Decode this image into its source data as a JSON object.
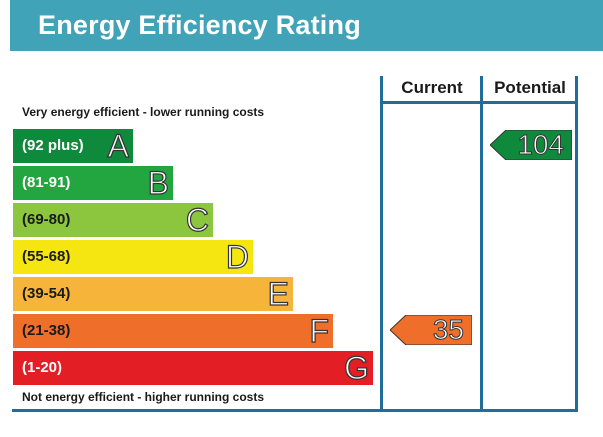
{
  "header": {
    "title": "Energy Efficiency Rating"
  },
  "columns": {
    "current": "Current",
    "potential": "Potential"
  },
  "captions": {
    "top": "Very energy efficient - lower running costs",
    "bottom": "Not energy efficient - higher running costs"
  },
  "chart_data": {
    "type": "bar",
    "title": "Energy Efficiency Rating",
    "categories": [
      "A",
      "B",
      "C",
      "D",
      "E",
      "F",
      "G"
    ],
    "bands": [
      {
        "letter": "A",
        "range": "(92 plus)",
        "color": "#0f8a3c",
        "text_color": "#ffffff"
      },
      {
        "letter": "B",
        "range": "(81-91)",
        "color": "#23a640",
        "text_color": "#ffffff"
      },
      {
        "letter": "C",
        "range": "(69-80)",
        "color": "#8cc63f",
        "text_color": "#1a1a1a"
      },
      {
        "letter": "D",
        "range": "(55-68)",
        "color": "#f5e511",
        "text_color": "#1a1a1a"
      },
      {
        "letter": "E",
        "range": "(39-54)",
        "color": "#f7b43a",
        "text_color": "#1a1a1a"
      },
      {
        "letter": "F",
        "range": "(21-38)",
        "color": "#ee6e2a",
        "text_color": "#1a1a1a"
      },
      {
        "letter": "G",
        "range": "(1-20)",
        "color": "#e31e25",
        "text_color": "#ffffff"
      }
    ],
    "current": {
      "value": "35",
      "band": "F",
      "color": "#ee6e2a"
    },
    "potential": {
      "value": "104",
      "band": "A",
      "color": "#0f8a3c"
    }
  }
}
